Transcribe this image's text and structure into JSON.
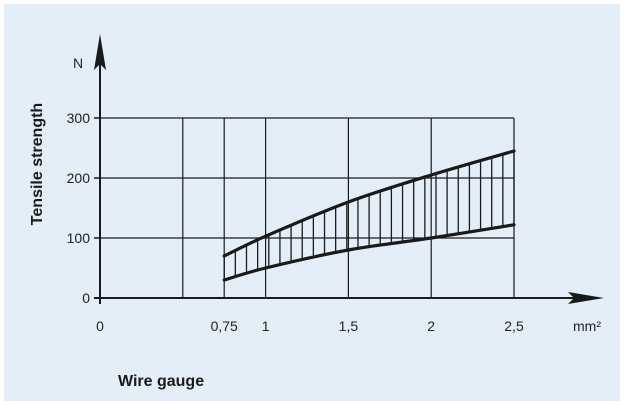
{
  "chart_data": {
    "type": "area",
    "title": "",
    "xlabel": "Wire gauge",
    "ylabel": "Tensile strength",
    "x_unit": "mm²",
    "y_unit": "N",
    "xlim": [
      0,
      2.5
    ],
    "ylim": [
      0,
      300
    ],
    "x_ticks": [
      0,
      0.75,
      1,
      1.5,
      2,
      2.5
    ],
    "x_tick_labels": [
      "0",
      "0,75",
      "1",
      "1,5",
      "2",
      "2,5"
    ],
    "y_ticks": [
      0,
      100,
      200,
      300
    ],
    "y_tick_labels": [
      "0",
      "100",
      "200",
      "300"
    ],
    "grid": true,
    "series": [
      {
        "x": [
          0.75,
          1,
          1.5,
          2,
          2.5
        ],
        "values": [
          70,
          103,
          160,
          205,
          245
        ]
      },
      {
        "x": [
          0.75,
          1,
          1.5,
          2,
          2.5
        ],
        "values": [
          30,
          50,
          80,
          100,
          122
        ]
      }
    ],
    "line_color": "#1a1a1a",
    "background_color": "#e4eef8"
  }
}
